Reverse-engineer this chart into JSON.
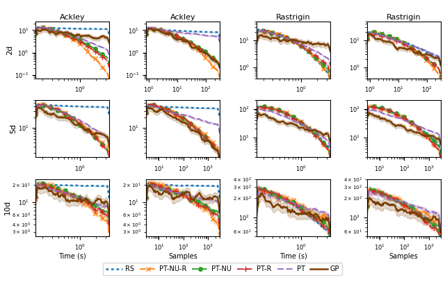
{
  "title_cols": [
    "Ackley",
    "Ackley",
    "Rastrigin",
    "Rastrigin"
  ],
  "row_labels": [
    "2d",
    "5d",
    "10d"
  ],
  "col_xlabels": [
    "Time (s)",
    "Samples",
    "Time (s)",
    "Samples"
  ],
  "methods": [
    "RS",
    "PT-NU-R",
    "PT-NU",
    "PT-R",
    "PT",
    "GP"
  ],
  "colors": [
    "#1f77b4",
    "#ff7f0e",
    "#2ca02c",
    "#d62728",
    "#9467bd",
    "#7B3F00"
  ],
  "alpha_fill": 0.2,
  "legend_entries": [
    "RS",
    "PT-NU-R",
    "PT-NU",
    "PT-R",
    "PT",
    "GP"
  ],
  "subplot_configs": [
    [
      {
        "xlim": [
          0.15,
          3.5
        ],
        "ylim": [
          0.07,
          25
        ],
        "xticks": [
          1.0
        ],
        "xlabel_minor": true
      },
      {
        "xlim": [
          0.8,
          300
        ],
        "ylim": [
          0.07,
          25
        ],
        "xticks": [
          1,
          10,
          100
        ]
      },
      {
        "xlim": [
          0.15,
          3.5
        ],
        "ylim": [
          0.4,
          50
        ],
        "xticks": [
          1.0
        ]
      },
      {
        "xlim": [
          0.8,
          300
        ],
        "ylim": [
          0.4,
          50
        ],
        "xticks": [
          1,
          10,
          100
        ]
      }
    ],
    [
      {
        "xlim": [
          0.15,
          3.5
        ],
        "ylim": [
          1.5,
          60
        ],
        "xticks": [
          1.0
        ]
      },
      {
        "xlim": [
          3,
          3000
        ],
        "ylim": [
          1.5,
          60
        ],
        "xticks": [
          10,
          1000
        ]
      },
      {
        "xlim": [
          0.15,
          3.5
        ],
        "ylim": [
          2,
          200
        ],
        "xticks": [
          1.0
        ]
      },
      {
        "xlim": [
          3,
          3000
        ],
        "ylim": [
          2,
          200
        ],
        "xticks": [
          10,
          1000
        ]
      }
    ],
    [
      {
        "xlim": [
          0.15,
          3.5
        ],
        "ylim": [
          2.5,
          25
        ],
        "xticks": [
          1.0
        ],
        "symlog": true
      },
      {
        "xlim": [
          3,
          3000
        ],
        "ylim": [
          2.5,
          25
        ],
        "xticks": [
          10,
          1000
        ],
        "symlog": true
      },
      {
        "xlim": [
          0.15,
          3.5
        ],
        "ylim": [
          50,
          400
        ],
        "xticks": [
          1.0
        ]
      },
      {
        "xlim": [
          3,
          3000
        ],
        "ylim": [
          50,
          400
        ],
        "xticks": [
          10,
          1000
        ]
      }
    ]
  ]
}
